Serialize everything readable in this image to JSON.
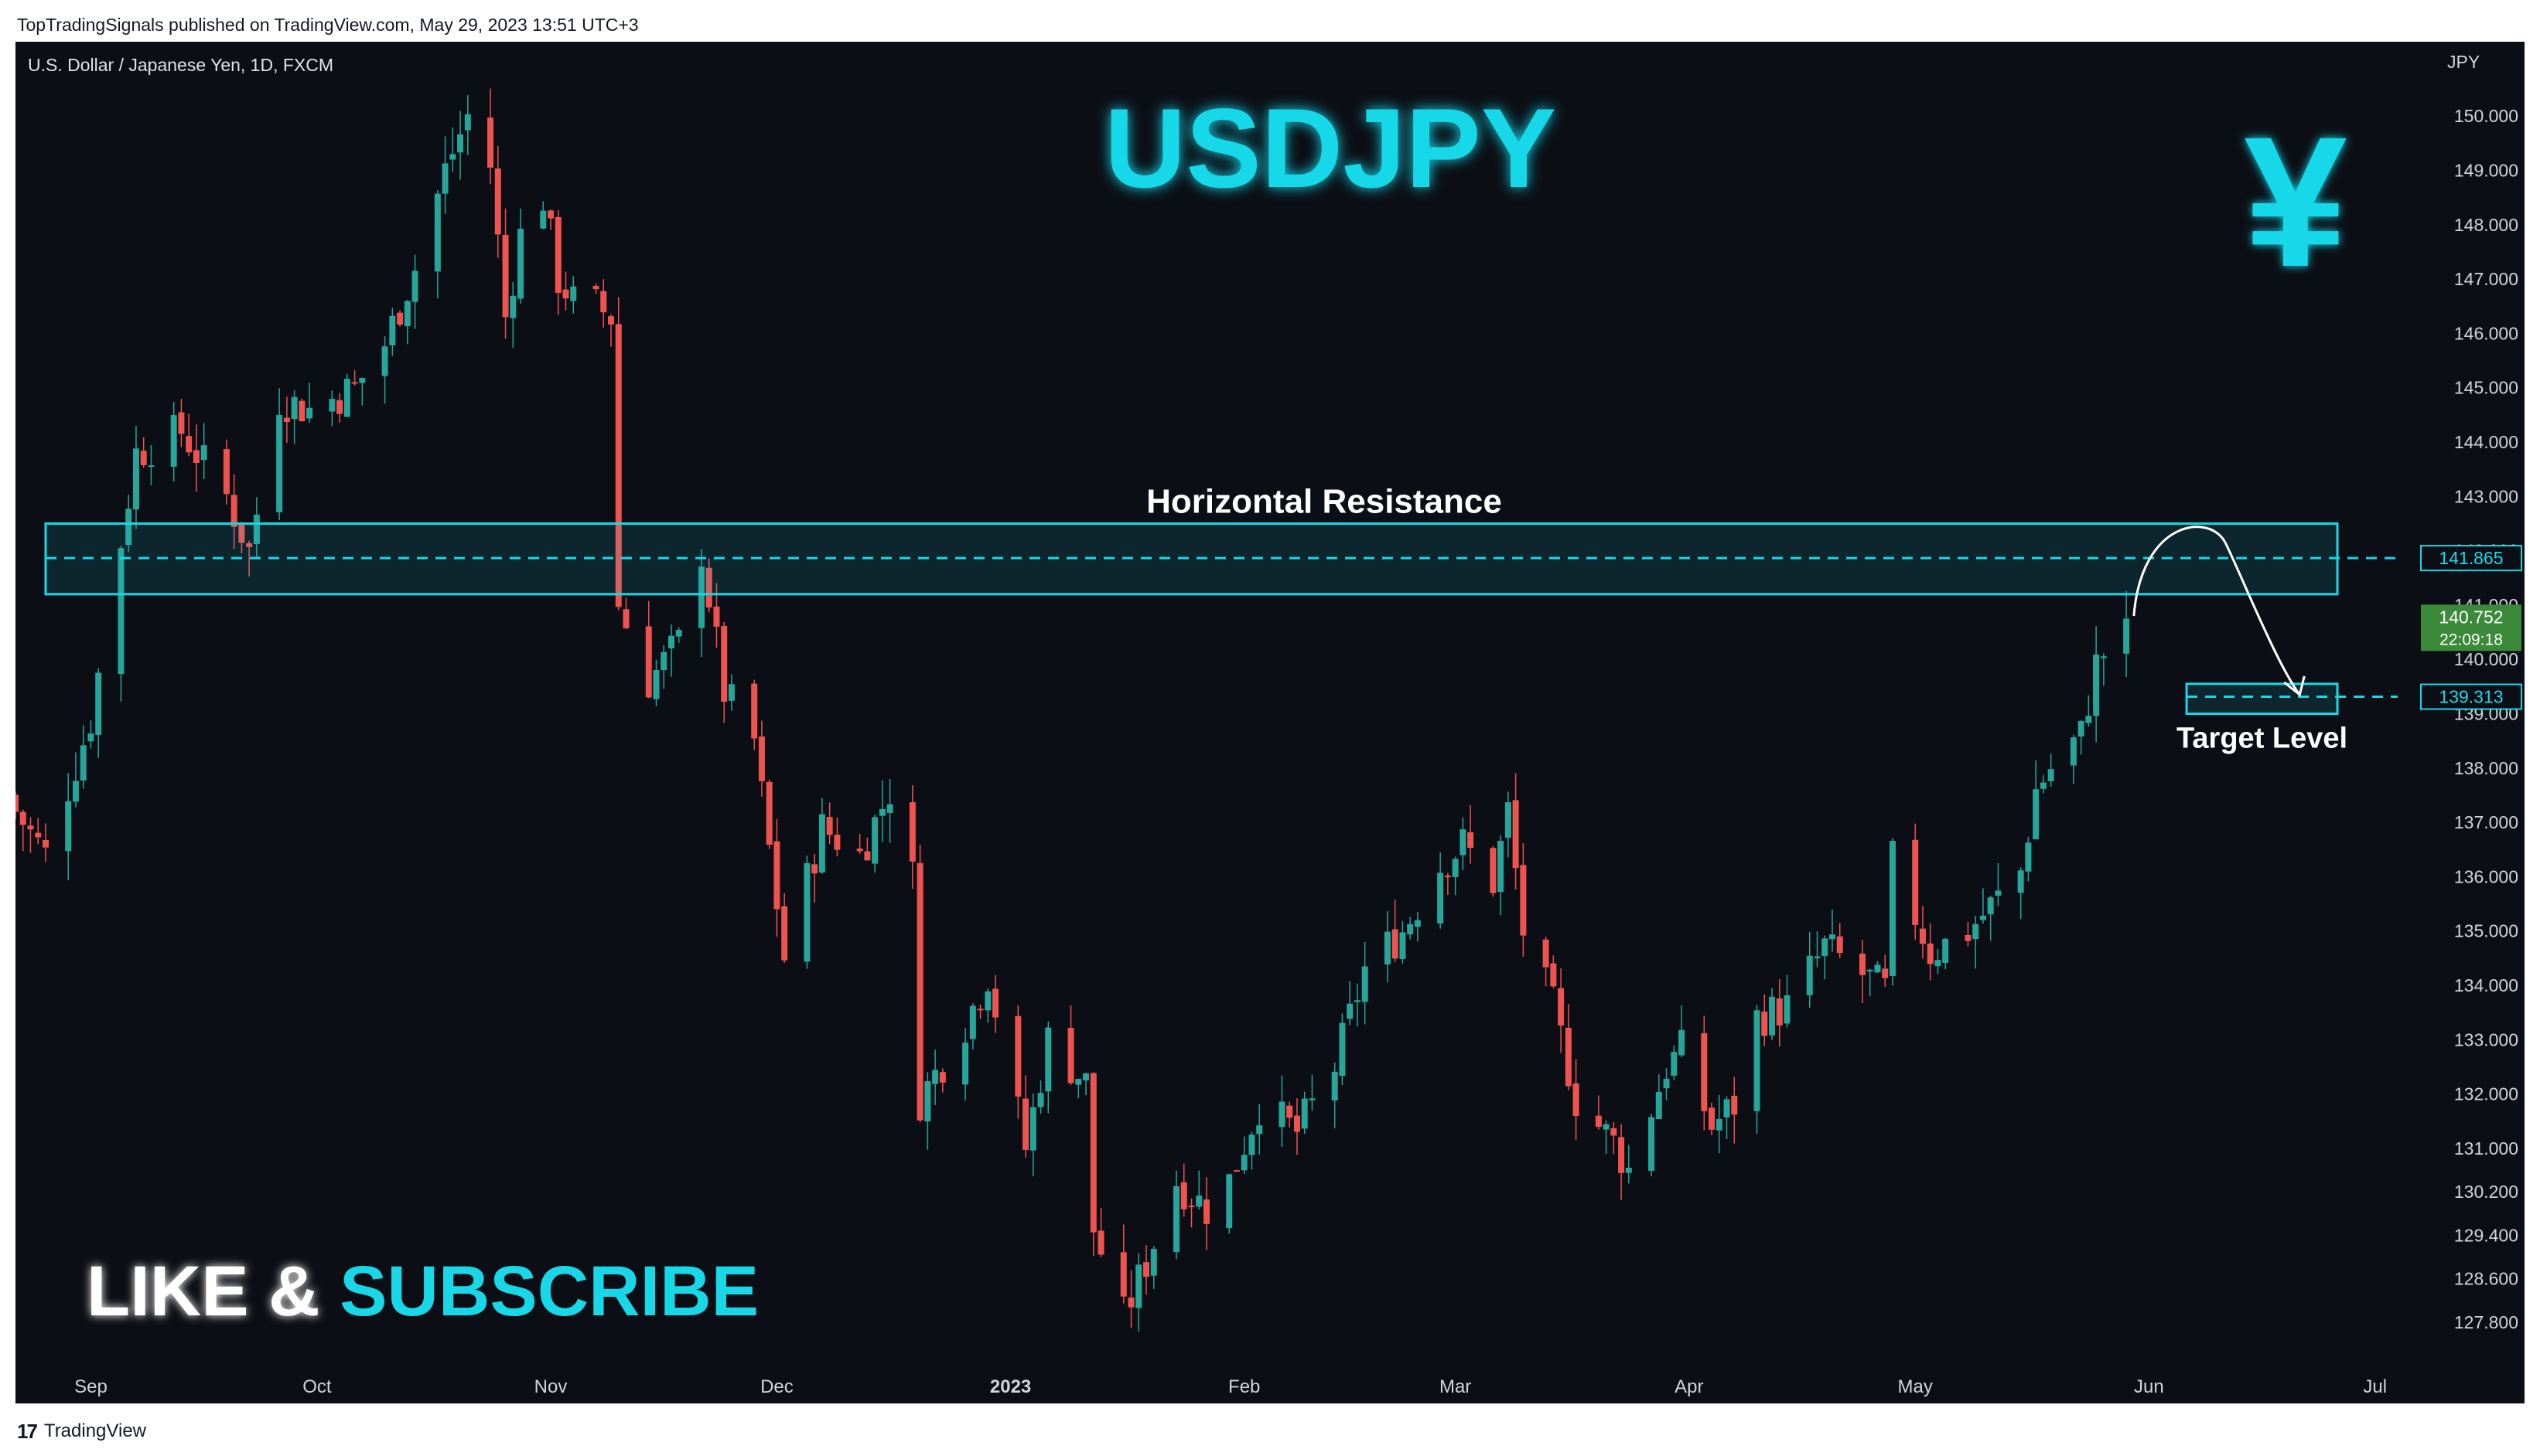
{
  "header": {
    "published_line": "TopTradingSignals published on TradingView.com, May 29, 2023 13:51 UTC+3"
  },
  "footer": {
    "logo_mark": "17",
    "brand": "TradingView"
  },
  "chart_data": {
    "type": "candlestick",
    "symbol_line": "U.S. Dollar / Japanese Yen, 1D, FXCM",
    "title": "USDJPY",
    "currency_label": "JPY",
    "currency_symbol": "¥",
    "ylim": [
      127.4,
      150.8
    ],
    "y_ticks": [
      "150.000",
      "149.000",
      "148.000",
      "147.000",
      "146.000",
      "145.000",
      "144.000",
      "143.000",
      "142.000",
      "141.000",
      "140.000",
      "139.000",
      "138.000",
      "137.000",
      "136.000",
      "135.000",
      "134.000",
      "133.000",
      "132.000",
      "131.000",
      "130.200",
      "129.400",
      "128.600",
      "127.800"
    ],
    "x_ticks": [
      {
        "label": "Sep",
        "date": "2022-09-01",
        "bold": false
      },
      {
        "label": "Oct",
        "date": "2022-10-01",
        "bold": false
      },
      {
        "label": "Nov",
        "date": "2022-11-01",
        "bold": false
      },
      {
        "label": "Dec",
        "date": "2022-12-01",
        "bold": false
      },
      {
        "label": "2023",
        "date": "2023-01-01",
        "bold": true
      },
      {
        "label": "Feb",
        "date": "2023-02-01",
        "bold": false
      },
      {
        "label": "Mar",
        "date": "2023-03-01",
        "bold": false
      },
      {
        "label": "Apr",
        "date": "2023-04-01",
        "bold": false
      },
      {
        "label": "May",
        "date": "2023-05-01",
        "bold": false
      },
      {
        "label": "Jun",
        "date": "2023-06-01",
        "bold": false
      },
      {
        "label": "Jul",
        "date": "2023-07-01",
        "bold": false
      }
    ],
    "x_range": [
      "2022-08-22",
      "2023-07-04"
    ],
    "path": [
      [
        "2022-08-22",
        137.2
      ],
      [
        "2022-08-26",
        136.4
      ],
      [
        "2022-09-01",
        138.9
      ],
      [
        "2022-09-07",
        143.8
      ],
      [
        "2022-09-13",
        144.2
      ],
      [
        "2022-09-19",
        143.0
      ],
      [
        "2022-09-22",
        142.0
      ],
      [
        "2022-09-26",
        144.8
      ],
      [
        "2022-09-30",
        144.6
      ],
      [
        "2022-10-06",
        145.0
      ],
      [
        "2022-10-10",
        145.8
      ],
      [
        "2022-10-14",
        147.2
      ],
      [
        "2022-10-18",
        149.0
      ],
      [
        "2022-10-21",
        150.0
      ],
      [
        "2022-10-24",
        149.1
      ],
      [
        "2022-10-26",
        146.3
      ],
      [
        "2022-10-28",
        147.8
      ],
      [
        "2022-10-31",
        148.5
      ],
      [
        "2022-11-02",
        147.0
      ],
      [
        "2022-11-04",
        146.6
      ],
      [
        "2022-11-07",
        146.5
      ],
      [
        "2022-11-09",
        146.3
      ],
      [
        "2022-11-10",
        141.0
      ],
      [
        "2022-11-14",
        139.6
      ],
      [
        "2022-11-18",
        140.3
      ],
      [
        "2022-11-21",
        142.0
      ],
      [
        "2022-11-24",
        139.4
      ],
      [
        "2022-11-28",
        138.5
      ],
      [
        "2022-12-02",
        134.5
      ],
      [
        "2022-12-07",
        136.9
      ],
      [
        "2022-12-12",
        136.4
      ],
      [
        "2022-12-16",
        137.6
      ],
      [
        "2022-12-19",
        136.0
      ],
      [
        "2022-12-20",
        131.9
      ],
      [
        "2022-12-26",
        133.3
      ],
      [
        "2022-12-29",
        134.2
      ],
      [
        "2023-01-03",
        131.0
      ],
      [
        "2023-01-06",
        133.0
      ],
      [
        "2023-01-11",
        132.2
      ],
      [
        "2023-01-12",
        129.5
      ],
      [
        "2023-01-16",
        127.9
      ],
      [
        "2023-01-19",
        128.9
      ],
      [
        "2023-01-23",
        130.4
      ],
      [
        "2023-01-27",
        129.9
      ],
      [
        "2023-01-30",
        130.4
      ],
      [
        "2023-02-03",
        131.8
      ],
      [
        "2023-02-08",
        131.3
      ],
      [
        "2023-02-13",
        132.5
      ],
      [
        "2023-02-17",
        134.3
      ],
      [
        "2023-02-22",
        135.0
      ],
      [
        "2023-02-27",
        136.2
      ],
      [
        "2023-03-02",
        136.6
      ],
      [
        "2023-03-06",
        135.9
      ],
      [
        "2023-03-08",
        137.2
      ],
      [
        "2023-03-10",
        135.0
      ],
      [
        "2023-03-14",
        133.6
      ],
      [
        "2023-03-17",
        131.9
      ],
      [
        "2023-03-22",
        131.1
      ],
      [
        "2023-03-24",
        130.6
      ],
      [
        "2023-03-29",
        132.5
      ],
      [
        "2023-03-31",
        132.8
      ],
      [
        "2023-04-04",
        131.4
      ],
      [
        "2023-04-07",
        131.8
      ],
      [
        "2023-04-10",
        133.4
      ],
      [
        "2023-04-14",
        133.6
      ],
      [
        "2023-04-19",
        134.7
      ],
      [
        "2023-04-24",
        134.2
      ],
      [
        "2023-04-27",
        133.9
      ],
      [
        "2023-04-28",
        136.3
      ],
      [
        "2023-05-03",
        134.6
      ],
      [
        "2023-05-08",
        135.0
      ],
      [
        "2023-05-12",
        135.6
      ],
      [
        "2023-05-15",
        136.1
      ],
      [
        "2023-05-17",
        137.6
      ],
      [
        "2023-05-19",
        138.0
      ],
      [
        "2023-05-23",
        138.6
      ],
      [
        "2023-05-25",
        139.9
      ],
      [
        "2023-05-29",
        140.75
      ]
    ],
    "last_price": "140.752",
    "countdown": "22:09:18",
    "resistance_zone": {
      "label": "Horizontal Resistance",
      "from": 141.2,
      "to": 142.5,
      "level": 141.865,
      "level_label": "141.865",
      "start_date": "2022-08-26",
      "end_date": "2023-06-26"
    },
    "target_zone": {
      "label": "Target Level",
      "from": 139.0,
      "to": 139.55,
      "level": 139.313,
      "level_label": "139.313",
      "start_date": "2023-06-06",
      "end_date": "2023-06-26"
    },
    "projection_arrow": {
      "start": [
        "2023-05-30",
        140.8
      ],
      "peak": [
        "2023-06-05",
        142.0
      ],
      "end": [
        "2023-06-21",
        139.35
      ]
    },
    "promo": {
      "part1": "LIKE & ",
      "part2": "SUBSCRIBE"
    },
    "colors": {
      "background": "#0c0e15",
      "up": "#26a69a",
      "down": "#ef5350",
      "accent": "#18d8e8",
      "last_price_bg": "#3a8a3a",
      "axis_text": "#d1d4dc"
    }
  }
}
